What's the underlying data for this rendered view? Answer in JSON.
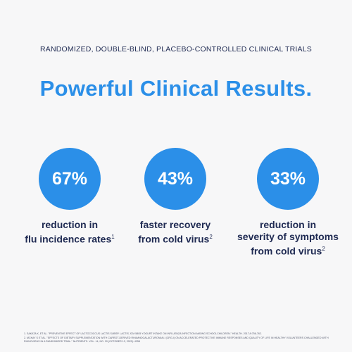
{
  "kicker": "RANDOMIZED, DOUBLE-BLIND, PLACEBO-CONTROLLED CLINICAL TRIALS",
  "headline": "Powerful Clinical Results.",
  "stats": [
    {
      "value": "67%",
      "lines": [
        "reduction in",
        "flu incidence rates"
      ],
      "ref": "1"
    },
    {
      "value": "43%",
      "lines": [
        "faster recovery",
        "from cold virus"
      ],
      "ref": "2"
    },
    {
      "value": "33%",
      "lines": [
        "reduction in",
        "severity of symptoms",
        "from cold virus"
      ],
      "ref": "2"
    }
  ],
  "footnotes": [
    "1.   SAKATA K, ET AL. \"PREVENTIVE EFFECT OF LACTOCOCCUS LACTIS SUBSP. LACTIS JCM 5805 YOGURT INTAKE ON INFLUENZA INFECTION AMONG SCHOOLCHILDREN.\" HEALTH. 2017;9:756-762.",
    "2.   MCKAY S ET AL. \"EFFECTS OF DIETARY SUPPLEMENTATION WITH CARROT-DERIVED RHAMNOGALACTURONAN-I (CRG-I) ON ACCELERATED PROTECTIVE IMMUNE RESPONSES AND QUALITY OF LIFE IN HEALTHY VOLUNTEERS CHALLENGED WITH RHINOVIRUS IN A RANDOMIZED TRIAL.\" NUTRIENTS. VOL. 14, NO. 20 (OCTOBER 12, 2022): 4258"
  ],
  "colors": {
    "accent": "#2b8fe8",
    "navy": "#1f2a52",
    "background": "#f7f7f8"
  }
}
